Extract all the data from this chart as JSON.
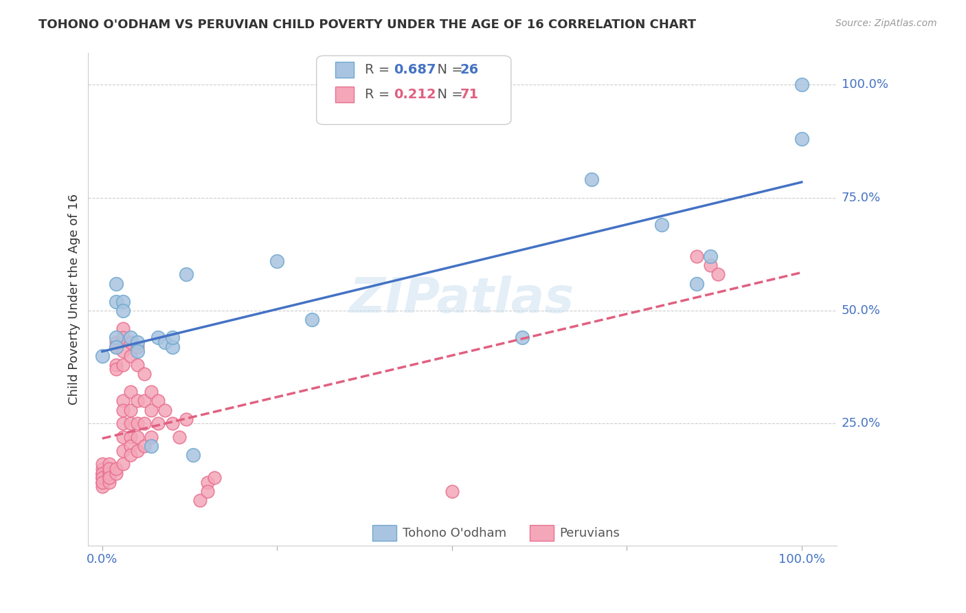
{
  "title": "TOHONO O'ODHAM VS PERUVIAN CHILD POVERTY UNDER THE AGE OF 16 CORRELATION CHART",
  "source": "Source: ZipAtlas.com",
  "ylabel": "Child Poverty Under the Age of 16",
  "xlabel": "",
  "background_color": "#ffffff",
  "title_color": "#333333",
  "source_color": "#999999",
  "axis_label_color": "#333333",
  "tick_color": "#4472c4",
  "watermark": "ZIPatlas",
  "legend_r1": "R = 0.687",
  "legend_n1": "N = 26",
  "legend_r2": "R = 0.212",
  "legend_n2": "N = 71",
  "tohono_color": "#a8c4e0",
  "peruvian_color": "#f4a7b9",
  "tohono_edge": "#6fa8d0",
  "peruvian_edge": "#e87090",
  "regression_blue": "#4472c4",
  "regression_pink": "#e06080",
  "grid_color": "#cccccc",
  "tohono_points": [
    [
      0.0,
      0.4
    ],
    [
      0.02,
      0.56
    ],
    [
      0.02,
      0.52
    ],
    [
      0.02,
      0.44
    ],
    [
      0.02,
      0.42
    ],
    [
      0.03,
      0.52
    ],
    [
      0.03,
      0.5
    ],
    [
      0.04,
      0.44
    ],
    [
      0.05,
      0.43
    ],
    [
      0.05,
      0.41
    ],
    [
      0.07,
      0.2
    ],
    [
      0.08,
      0.44
    ],
    [
      0.09,
      0.43
    ],
    [
      0.1,
      0.42
    ],
    [
      0.1,
      0.44
    ],
    [
      0.12,
      0.58
    ],
    [
      0.13,
      0.18
    ],
    [
      0.25,
      0.61
    ],
    [
      0.3,
      0.48
    ],
    [
      0.6,
      0.44
    ],
    [
      0.7,
      0.79
    ],
    [
      0.8,
      0.69
    ],
    [
      0.85,
      0.56
    ],
    [
      0.87,
      0.62
    ],
    [
      1.0,
      1.0
    ],
    [
      1.0,
      0.88
    ]
  ],
  "peruvian_points": [
    [
      0.0,
      0.14
    ],
    [
      0.0,
      0.13
    ],
    [
      0.0,
      0.12
    ],
    [
      0.0,
      0.14
    ],
    [
      0.0,
      0.15
    ],
    [
      0.0,
      0.13
    ],
    [
      0.0,
      0.12
    ],
    [
      0.0,
      0.11
    ],
    [
      0.0,
      0.16
    ],
    [
      0.0,
      0.14
    ],
    [
      0.0,
      0.13
    ],
    [
      0.0,
      0.12
    ],
    [
      0.01,
      0.15
    ],
    [
      0.01,
      0.14
    ],
    [
      0.01,
      0.16
    ],
    [
      0.01,
      0.13
    ],
    [
      0.01,
      0.12
    ],
    [
      0.01,
      0.14
    ],
    [
      0.01,
      0.15
    ],
    [
      0.01,
      0.13
    ],
    [
      0.02,
      0.43
    ],
    [
      0.02,
      0.42
    ],
    [
      0.02,
      0.38
    ],
    [
      0.02,
      0.37
    ],
    [
      0.02,
      0.14
    ],
    [
      0.02,
      0.15
    ],
    [
      0.03,
      0.46
    ],
    [
      0.03,
      0.44
    ],
    [
      0.03,
      0.41
    ],
    [
      0.03,
      0.38
    ],
    [
      0.03,
      0.3
    ],
    [
      0.03,
      0.28
    ],
    [
      0.03,
      0.25
    ],
    [
      0.03,
      0.22
    ],
    [
      0.03,
      0.19
    ],
    [
      0.03,
      0.16
    ],
    [
      0.04,
      0.43
    ],
    [
      0.04,
      0.4
    ],
    [
      0.04,
      0.32
    ],
    [
      0.04,
      0.28
    ],
    [
      0.04,
      0.25
    ],
    [
      0.04,
      0.22
    ],
    [
      0.04,
      0.2
    ],
    [
      0.04,
      0.18
    ],
    [
      0.05,
      0.42
    ],
    [
      0.05,
      0.38
    ],
    [
      0.05,
      0.3
    ],
    [
      0.05,
      0.25
    ],
    [
      0.05,
      0.22
    ],
    [
      0.05,
      0.19
    ],
    [
      0.06,
      0.36
    ],
    [
      0.06,
      0.3
    ],
    [
      0.06,
      0.25
    ],
    [
      0.06,
      0.2
    ],
    [
      0.07,
      0.32
    ],
    [
      0.07,
      0.28
    ],
    [
      0.07,
      0.22
    ],
    [
      0.08,
      0.3
    ],
    [
      0.08,
      0.25
    ],
    [
      0.09,
      0.28
    ],
    [
      0.1,
      0.25
    ],
    [
      0.11,
      0.22
    ],
    [
      0.12,
      0.26
    ],
    [
      0.14,
      0.08
    ],
    [
      0.15,
      0.12
    ],
    [
      0.15,
      0.1
    ],
    [
      0.16,
      0.13
    ],
    [
      0.5,
      0.1
    ],
    [
      0.85,
      0.62
    ],
    [
      0.87,
      0.6
    ],
    [
      0.88,
      0.58
    ]
  ]
}
